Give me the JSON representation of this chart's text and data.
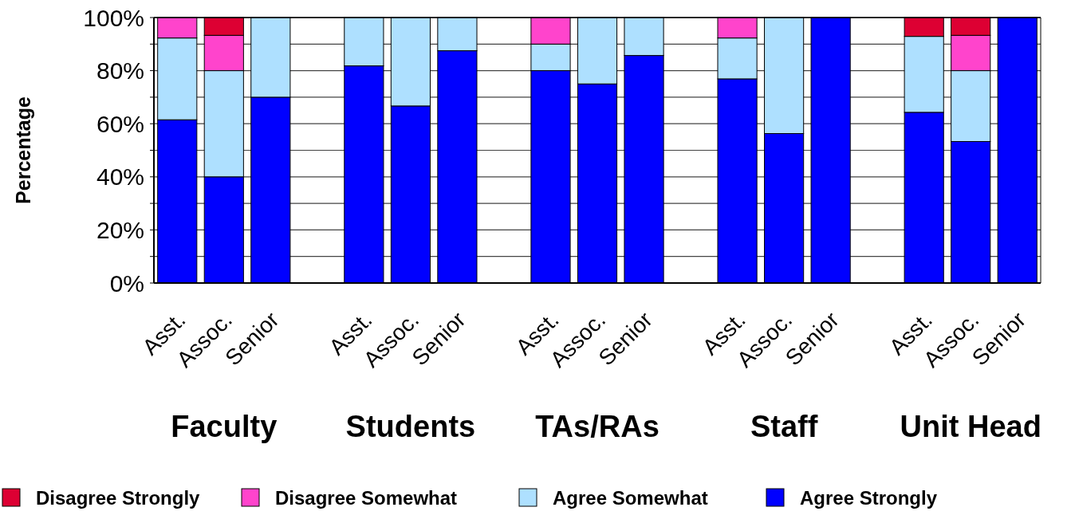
{
  "chart_data": {
    "type": "bar",
    "stacked": true,
    "ylabel": "Percentage",
    "categories": [
      "Asst.",
      "Assoc.",
      "Senior",
      null,
      "Asst.",
      "Assoc.",
      "Senior",
      null,
      "Asst.",
      "Assoc.",
      "Senior",
      null,
      "Asst.",
      "Assoc.",
      "Senior",
      null,
      "Asst.",
      "Assoc.",
      "Senior"
    ],
    "series": [
      {
        "name": "Agree Strongly",
        "color": "#0000ff",
        "values": [
          61.5,
          40,
          70,
          null,
          81.8,
          66.7,
          87.5,
          null,
          80,
          75,
          85.7,
          null,
          76.9,
          56.3,
          100,
          null,
          64.3,
          53.3,
          100
        ]
      },
      {
        "name": "Agree Somewhat",
        "color": "#aee0ff",
        "values": [
          30.8,
          40,
          30,
          null,
          18.2,
          33.3,
          12.5,
          null,
          10,
          25,
          14.3,
          null,
          15.4,
          43.7,
          0,
          null,
          28.6,
          26.7,
          0
        ]
      },
      {
        "name": "Disagree Somewhat",
        "color": "#ff44cc",
        "values": [
          7.7,
          13.3,
          0,
          null,
          0,
          0,
          0,
          null,
          10,
          0,
          0,
          null,
          7.7,
          0,
          0,
          null,
          0,
          13.3,
          0
        ]
      },
      {
        "name": "Disagree Strongly",
        "color": "#dd0033",
        "values": [
          0,
          6.7,
          0,
          null,
          0,
          0,
          0,
          null,
          0,
          0,
          0,
          null,
          0,
          0,
          0,
          null,
          7.1,
          6.7,
          0
        ]
      }
    ],
    "ylim": [
      0,
      100
    ],
    "yticks": [
      {
        "value": 0,
        "label": "0%"
      },
      {
        "value": 10,
        "label": null
      },
      {
        "value": 20,
        "label": "20%"
      },
      {
        "value": 30,
        "label": null
      },
      {
        "value": 40,
        "label": "40%"
      },
      {
        "value": 50,
        "label": null
      },
      {
        "value": 60,
        "label": "60%"
      },
      {
        "value": 70,
        "label": null
      },
      {
        "value": 80,
        "label": "80%"
      },
      {
        "value": 90,
        "label": null
      },
      {
        "value": 100,
        "label": "100%"
      }
    ],
    "grid": "y",
    "legend": "bottom",
    "annotations": [
      "Faculty",
      "Students",
      "TAs/RAs",
      "Staff",
      "Unit Head"
    ]
  }
}
